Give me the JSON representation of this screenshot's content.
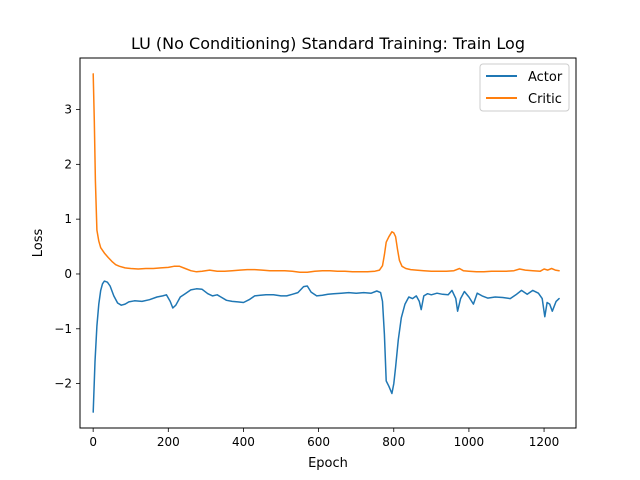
{
  "chart_data": {
    "type": "line",
    "title": "LU (No Conditioning) Standard Training: Train Log",
    "xlabel": "Epoch",
    "ylabel": "Loss",
    "xlim": [
      -35,
      1285
    ],
    "ylim": [
      -2.81,
      3.94
    ],
    "xticks": [
      0,
      200,
      400,
      600,
      800,
      1000,
      1200
    ],
    "xtick_labels": [
      "0",
      "200",
      "400",
      "600",
      "800",
      "1000",
      "1200"
    ],
    "yticks": [
      -2,
      -1,
      0,
      1,
      2,
      3
    ],
    "ytick_labels": [
      "−2",
      "−1",
      "0",
      "1",
      "2",
      "3"
    ],
    "grid": false,
    "legend_position": "top-right",
    "series": [
      {
        "name": "Actor",
        "color": "#1f77b4",
        "points": [
          [
            0,
            -2.52
          ],
          [
            5,
            -1.6
          ],
          [
            10,
            -0.95
          ],
          [
            15,
            -0.55
          ],
          [
            20,
            -0.3
          ],
          [
            25,
            -0.18
          ],
          [
            30,
            -0.13
          ],
          [
            38,
            -0.15
          ],
          [
            45,
            -0.22
          ],
          [
            55,
            -0.4
          ],
          [
            65,
            -0.53
          ],
          [
            75,
            -0.57
          ],
          [
            85,
            -0.55
          ],
          [
            95,
            -0.51
          ],
          [
            110,
            -0.49
          ],
          [
            130,
            -0.5
          ],
          [
            150,
            -0.47
          ],
          [
            170,
            -0.42
          ],
          [
            185,
            -0.4
          ],
          [
            195,
            -0.38
          ],
          [
            205,
            -0.5
          ],
          [
            212,
            -0.62
          ],
          [
            220,
            -0.57
          ],
          [
            232,
            -0.42
          ],
          [
            245,
            -0.36
          ],
          [
            260,
            -0.29
          ],
          [
            275,
            -0.27
          ],
          [
            290,
            -0.28
          ],
          [
            305,
            -0.36
          ],
          [
            318,
            -0.4
          ],
          [
            330,
            -0.38
          ],
          [
            340,
            -0.42
          ],
          [
            355,
            -0.48
          ],
          [
            370,
            -0.5
          ],
          [
            385,
            -0.51
          ],
          [
            400,
            -0.52
          ],
          [
            415,
            -0.47
          ],
          [
            430,
            -0.4
          ],
          [
            445,
            -0.39
          ],
          [
            460,
            -0.38
          ],
          [
            480,
            -0.38
          ],
          [
            500,
            -0.4
          ],
          [
            515,
            -0.4
          ],
          [
            530,
            -0.37
          ],
          [
            545,
            -0.34
          ],
          [
            560,
            -0.23
          ],
          [
            570,
            -0.22
          ],
          [
            580,
            -0.33
          ],
          [
            595,
            -0.4
          ],
          [
            610,
            -0.39
          ],
          [
            625,
            -0.37
          ],
          [
            640,
            -0.36
          ],
          [
            660,
            -0.35
          ],
          [
            680,
            -0.34
          ],
          [
            700,
            -0.35
          ],
          [
            720,
            -0.34
          ],
          [
            740,
            -0.35
          ],
          [
            755,
            -0.31
          ],
          [
            765,
            -0.34
          ],
          [
            770,
            -0.5
          ],
          [
            775,
            -1.1
          ],
          [
            780,
            -1.95
          ],
          [
            787,
            -2.05
          ],
          [
            795,
            -2.18
          ],
          [
            800,
            -2.0
          ],
          [
            805,
            -1.7
          ],
          [
            812,
            -1.2
          ],
          [
            820,
            -0.8
          ],
          [
            830,
            -0.55
          ],
          [
            840,
            -0.42
          ],
          [
            850,
            -0.45
          ],
          [
            860,
            -0.4
          ],
          [
            868,
            -0.5
          ],
          [
            873,
            -0.65
          ],
          [
            880,
            -0.4
          ],
          [
            890,
            -0.36
          ],
          [
            900,
            -0.38
          ],
          [
            915,
            -0.35
          ],
          [
            930,
            -0.37
          ],
          [
            945,
            -0.38
          ],
          [
            955,
            -0.3
          ],
          [
            965,
            -0.45
          ],
          [
            970,
            -0.68
          ],
          [
            978,
            -0.45
          ],
          [
            988,
            -0.32
          ],
          [
            1000,
            -0.42
          ],
          [
            1012,
            -0.55
          ],
          [
            1022,
            -0.35
          ],
          [
            1035,
            -0.4
          ],
          [
            1050,
            -0.44
          ],
          [
            1070,
            -0.42
          ],
          [
            1090,
            -0.43
          ],
          [
            1110,
            -0.45
          ],
          [
            1125,
            -0.38
          ],
          [
            1140,
            -0.3
          ],
          [
            1155,
            -0.37
          ],
          [
            1170,
            -0.3
          ],
          [
            1185,
            -0.35
          ],
          [
            1195,
            -0.45
          ],
          [
            1202,
            -0.78
          ],
          [
            1208,
            -0.52
          ],
          [
            1215,
            -0.55
          ],
          [
            1222,
            -0.68
          ],
          [
            1232,
            -0.5
          ],
          [
            1240,
            -0.45
          ]
        ]
      },
      {
        "name": "Critic",
        "color": "#ff7f0e",
        "points": [
          [
            0,
            3.65
          ],
          [
            3,
            2.8
          ],
          [
            6,
            1.7
          ],
          [
            10,
            0.8
          ],
          [
            15,
            0.6
          ],
          [
            20,
            0.48
          ],
          [
            30,
            0.38
          ],
          [
            40,
            0.3
          ],
          [
            50,
            0.23
          ],
          [
            60,
            0.17
          ],
          [
            70,
            0.14
          ],
          [
            85,
            0.11
          ],
          [
            100,
            0.1
          ],
          [
            120,
            0.09
          ],
          [
            140,
            0.1
          ],
          [
            160,
            0.1
          ],
          [
            180,
            0.11
          ],
          [
            200,
            0.12
          ],
          [
            215,
            0.14
          ],
          [
            230,
            0.14
          ],
          [
            245,
            0.1
          ],
          [
            260,
            0.06
          ],
          [
            275,
            0.04
          ],
          [
            290,
            0.05
          ],
          [
            310,
            0.07
          ],
          [
            330,
            0.05
          ],
          [
            350,
            0.05
          ],
          [
            370,
            0.06
          ],
          [
            390,
            0.07
          ],
          [
            410,
            0.08
          ],
          [
            430,
            0.08
          ],
          [
            450,
            0.07
          ],
          [
            470,
            0.06
          ],
          [
            490,
            0.06
          ],
          [
            510,
            0.06
          ],
          [
            530,
            0.05
          ],
          [
            550,
            0.03
          ],
          [
            570,
            0.03
          ],
          [
            590,
            0.05
          ],
          [
            610,
            0.06
          ],
          [
            630,
            0.06
          ],
          [
            650,
            0.05
          ],
          [
            670,
            0.05
          ],
          [
            690,
            0.04
          ],
          [
            710,
            0.04
          ],
          [
            730,
            0.04
          ],
          [
            750,
            0.05
          ],
          [
            762,
            0.07
          ],
          [
            770,
            0.15
          ],
          [
            775,
            0.35
          ],
          [
            780,
            0.58
          ],
          [
            787,
            0.68
          ],
          [
            795,
            0.77
          ],
          [
            800,
            0.75
          ],
          [
            805,
            0.68
          ],
          [
            810,
            0.45
          ],
          [
            815,
            0.25
          ],
          [
            822,
            0.14
          ],
          [
            832,
            0.1
          ],
          [
            845,
            0.08
          ],
          [
            860,
            0.07
          ],
          [
            880,
            0.06
          ],
          [
            900,
            0.05
          ],
          [
            920,
            0.05
          ],
          [
            940,
            0.05
          ],
          [
            960,
            0.06
          ],
          [
            975,
            0.1
          ],
          [
            985,
            0.06
          ],
          [
            1000,
            0.05
          ],
          [
            1020,
            0.04
          ],
          [
            1040,
            0.04
          ],
          [
            1060,
            0.05
          ],
          [
            1080,
            0.05
          ],
          [
            1100,
            0.05
          ],
          [
            1120,
            0.06
          ],
          [
            1135,
            0.09
          ],
          [
            1150,
            0.07
          ],
          [
            1170,
            0.06
          ],
          [
            1190,
            0.05
          ],
          [
            1200,
            0.09
          ],
          [
            1210,
            0.07
          ],
          [
            1220,
            0.1
          ],
          [
            1230,
            0.07
          ],
          [
            1240,
            0.06
          ]
        ]
      }
    ]
  }
}
